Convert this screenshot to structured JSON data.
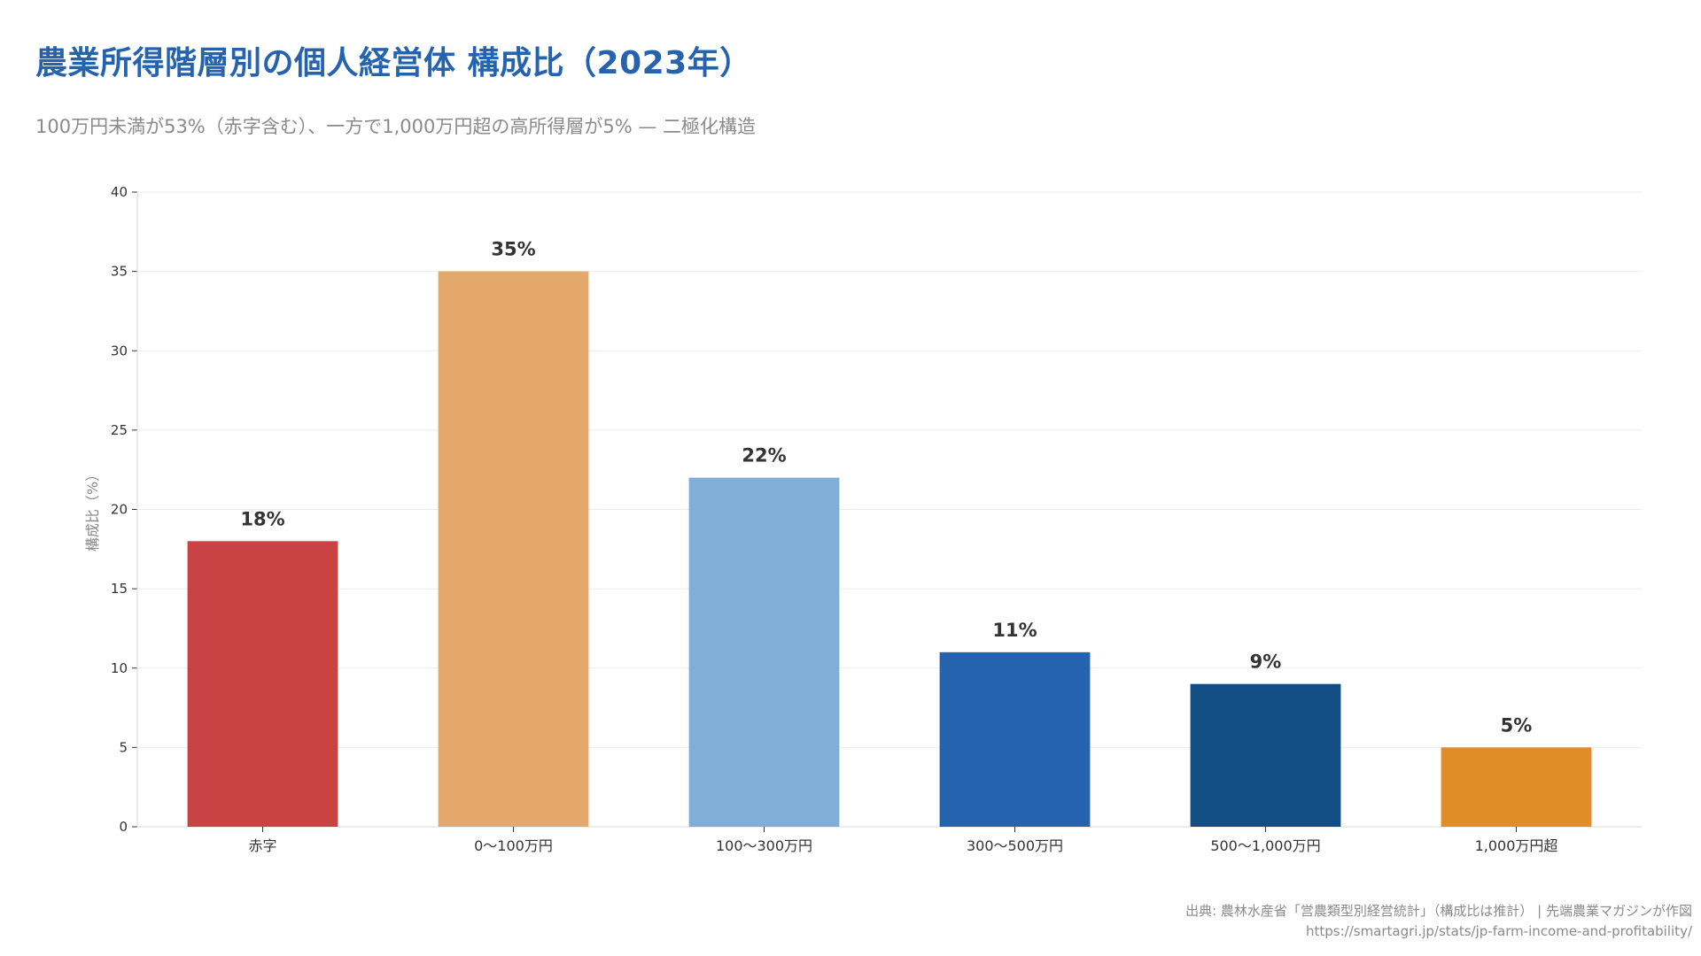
{
  "title": "農業所得階層別の個人経営体 構成比（2023年）",
  "subtitle": "100万円未満が53%（赤字含む）、一方で1,000万円超の高所得層が5% — 二極化構造",
  "source": "出典: 農林水産省「営農類型別経営統計」（構成比は推計） | 先端農業マガジンが作図",
  "url": "https://smartagri.jp/stats/jp-farm-income-and-profitability/",
  "chart_data": {
    "type": "bar",
    "title": "農業所得階層別の個人経営体 構成比（2023年）",
    "ylabel": "構成比（%）",
    "xlabel": "",
    "ylim": [
      0,
      40
    ],
    "yticks": [
      0,
      5,
      10,
      15,
      20,
      25,
      30,
      35,
      40
    ],
    "grid": true,
    "categories": [
      "赤字",
      "0〜100万円",
      "100〜300万円",
      "300〜500万円",
      "500〜1,000万円",
      "1,000万円超"
    ],
    "values": [
      18,
      35,
      22,
      11,
      9,
      5
    ],
    "value_labels": [
      "18%",
      "35%",
      "22%",
      "11%",
      "9%",
      "5%"
    ],
    "colors": [
      "#c94244",
      "#e5a86c",
      "#80aed5",
      "#2563ae",
      "#124d83",
      "#e28c28"
    ]
  }
}
